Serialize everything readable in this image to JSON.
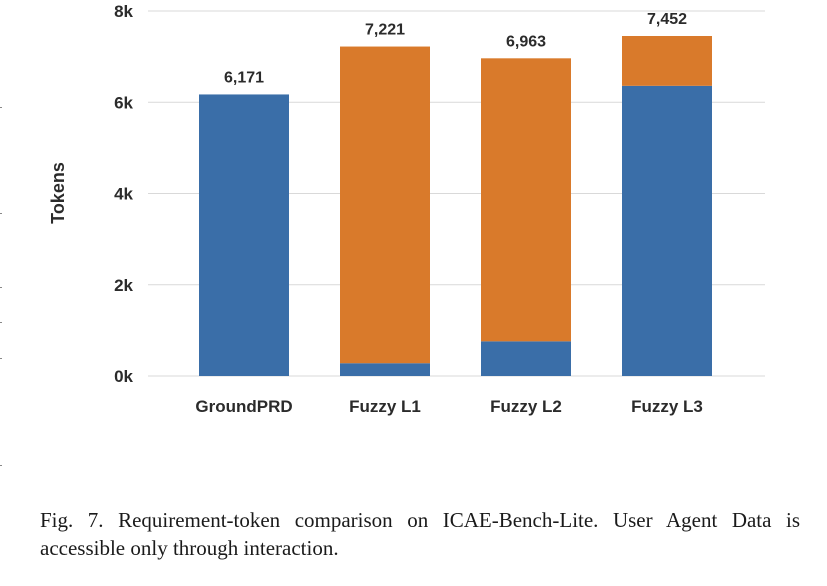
{
  "caption": "Fig. 7.  Requirement-token comparison on ICAE-Bench-Lite. User Agent Data is accessible only through interaction.",
  "colors": {
    "series_bottom": "#3a6ea8",
    "series_top": "#d97a2b",
    "grid": "#d9d9d9"
  },
  "chart_data": {
    "type": "bar",
    "stacked": true,
    "categories": [
      "GroundPRD",
      "Fuzzy L1",
      "Fuzzy L2",
      "Fuzzy L3"
    ],
    "series": [
      {
        "values": [
          6171,
          280,
          760,
          6360
        ]
      },
      {
        "values": [
          0,
          6941,
          6203,
          1092
        ]
      }
    ],
    "totals": [
      6171,
      7221,
      6963,
      7452
    ],
    "total_labels": [
      "6,171",
      "7,221",
      "6,963",
      "7,452"
    ],
    "ylabel": "Tokens",
    "ylim": [
      0,
      8000
    ],
    "yticks": [
      0,
      2000,
      4000,
      6000,
      8000
    ],
    "ytick_labels": [
      "0k",
      "2k",
      "4k",
      "6k",
      "8k"
    ],
    "grid": true,
    "legend": "none"
  }
}
